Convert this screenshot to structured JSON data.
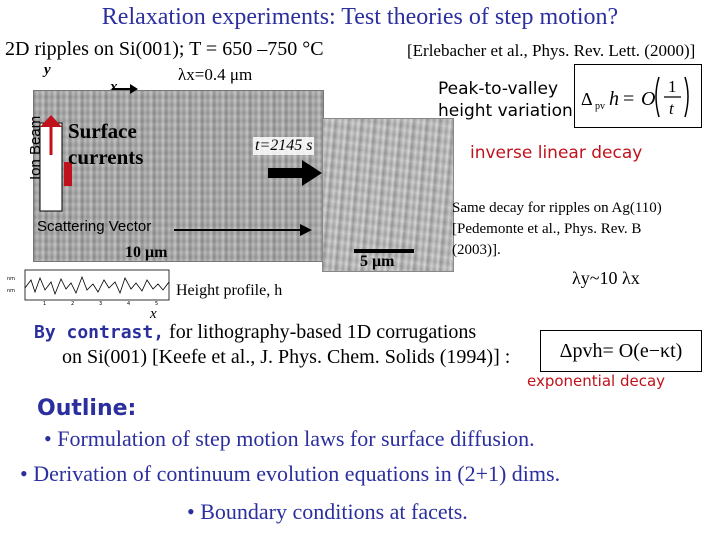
{
  "title": "Relaxation experiments: Test theories of step motion?",
  "subtitle": "2D ripples on Si(001); T = 650 –750 °C",
  "ref1": "[Erlebacher et al., Phys. Rev. Lett. (2000)]",
  "y_axis": "y",
  "x_axis": "x",
  "lambda_x": "λx=0.4 μm",
  "surface_currents": [
    "Surface",
    "currents"
  ],
  "time_label": "t=2145 s",
  "ion_beam": "Ion Beam",
  "scattering_vector": "Scattering Vector",
  "scale_10": "10 μm",
  "scale_5": "5 μm",
  "peak_to_valley": [
    "Peak-to-valley",
    "height variation"
  ],
  "formula1": "Δpv h = O(1/t)",
  "inverse_linear": "inverse linear decay",
  "same_decay": [
    "Same decay for ripples on Ag(110)",
    "[Pedemonte et al., Phys. Rev. B",
    "(2003)]."
  ],
  "lambda_y": "λy~10 λx",
  "height_profile": "Height profile, h",
  "by_contrast_bold": "By contrast,",
  "by_contrast_text": " for lithography-based 1D corrugations",
  "on_si": "on Si(001) [Keefe et al., J. Phys. Chem. Solids (1994)] :",
  "formula2": "Δpvh= O(e−κt)",
  "exp_decay": "exponential decay",
  "outline": "Outline:",
  "bullets": [
    "•  Formulation of step motion laws for surface diffusion.",
    "• Derivation of continuum evolution equations in (2+1) dims.",
    "• Boundary conditions at facets."
  ],
  "colors": {
    "title": "#2b2f9e",
    "accent_red": "#c0121c"
  }
}
